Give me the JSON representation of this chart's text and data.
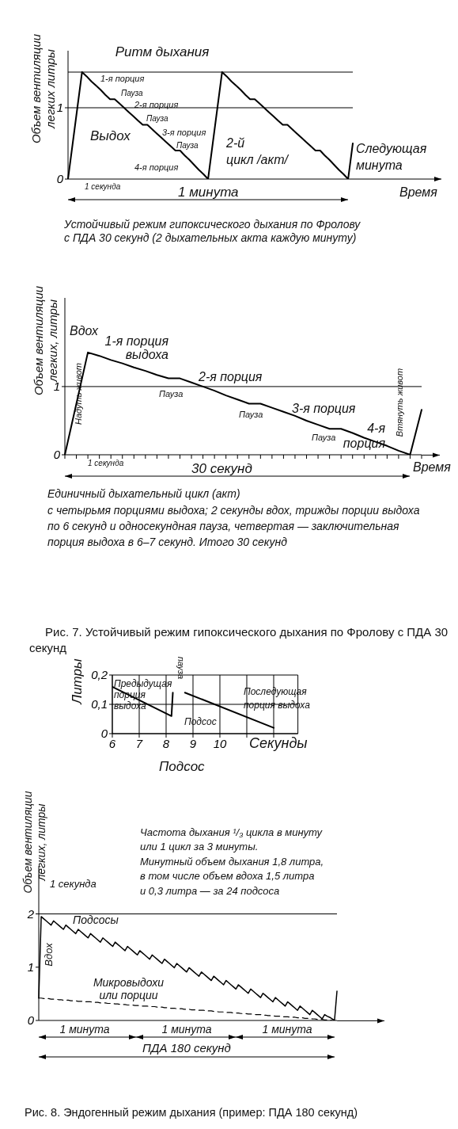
{
  "chart_data": [
    {
      "type": "line",
      "title": "Ритм дыхания",
      "xlabel": "Время",
      "ylabel": "Объем вентиляции легких литры",
      "categories": [
        null,
        null,
        null,
        null,
        null,
        null,
        null,
        null,
        null,
        null,
        null,
        null,
        null,
        null,
        null,
        null,
        null,
        null,
        null,
        null,
        null,
        null,
        null,
        null,
        null,
        null,
        null,
        null,
        null,
        null,
        null,
        null,
        null,
        null,
        null,
        null,
        null,
        null,
        null,
        null,
        null,
        null,
        null,
        null,
        null,
        null,
        null,
        null,
        null,
        null,
        null,
        null,
        null,
        null,
        null,
        null,
        null,
        null,
        null,
        null,
        null,
        null
      ],
      "series": [
        {
          "color": "#000000",
          "values": [
            0,
            0.5,
            1.0,
            1.5,
            1.44,
            1.37,
            1.31,
            1.25,
            1.18,
            1.12,
            1.12,
            1.06,
            1.0,
            0.94,
            0.88,
            0.82,
            0.76,
            0.76,
            0.7,
            0.64,
            0.58,
            0.52,
            0.46,
            0.4,
            0.4,
            0.33,
            0.27,
            0.2,
            0.13,
            0.07,
            0,
            0.5,
            1.0,
            1.5,
            1.44,
            1.37,
            1.31,
            1.25,
            1.18,
            1.12,
            1.12,
            1.06,
            1.0,
            0.94,
            0.88,
            0.82,
            0.76,
            0.76,
            0.7,
            0.64,
            0.58,
            0.52,
            0.46,
            0.4,
            0.4,
            0.33,
            0.27,
            0.2,
            0.13,
            0.07,
            0,
            0.5
          ]
        }
      ],
      "ylim": [
        0,
        1.8
      ],
      "yticks": [
        0,
        1
      ],
      "tick_labels": "y",
      "ref_lines": [
        {
          "axis": "y",
          "value": 1
        },
        {
          "axis": "y",
          "value": 1.5
        }
      ],
      "annotations": [
        "1-я порция",
        "Пауза",
        "2-я порция",
        "Пауза",
        "3-я порция",
        "Пауза",
        "4-я порция",
        "Выдох",
        "2-й\nцикл /акт/",
        "Следующая\nминута",
        "1 секунда",
        "1 минута",
        "Устойчивый режим гипоксического дыхания по Фролову\nс ПДА 30 секунд (2 дыхательных акта каждую минуту)"
      ]
    },
    {
      "type": "line",
      "xlabel": "Время",
      "ylabel": "Объем вентиляции легких, литры",
      "categories": [
        null,
        null,
        null,
        null,
        null,
        null,
        null,
        null,
        null,
        null,
        null,
        null,
        null,
        null,
        null,
        null,
        null,
        null,
        null,
        null,
        null,
        null,
        null,
        null,
        null,
        null,
        null,
        null,
        null,
        null,
        null,
        null
      ],
      "series": [
        {
          "color": "#000000",
          "values": [
            0,
            0.75,
            1.5,
            1.45,
            1.39,
            1.34,
            1.28,
            1.23,
            1.17,
            1.12,
            1.12,
            1.06,
            1.0,
            0.94,
            0.87,
            0.81,
            0.75,
            0.75,
            0.69,
            0.63,
            0.57,
            0.5,
            0.44,
            0.38,
            0.38,
            0.32,
            0.25,
            0.19,
            0.13,
            0.06,
            0,
            0.66
          ]
        }
      ],
      "ylim": [
        0,
        2.3
      ],
      "yticks": [
        0,
        1
      ],
      "tick_labels": "y",
      "ref_lines": [
        {
          "axis": "y",
          "value": 1
        }
      ],
      "annotations": [
        "Вдох",
        "1-я порция\nвыдоха",
        "2-я порция",
        "Пауза",
        "Пауза",
        "3-я порция",
        "Пауза",
        "4-я\nпорция",
        "Надуть живот",
        "Втянуть живот",
        "1 секунда",
        "30 секунд",
        "Единичный дыхательный цикл (акт)",
        "с четырьмя порциями выдоха; 2 секунды вдох, трижды порции выдоха по 6 секунд и односекундная пауза, четвертая — заключительная порция выдоха в 6–7 секунд. Итого 30 секунд",
        "Рис. 7. Устойчивый режим гипоксического дыхания по Фролову с ПДА 30 секунд"
      ]
    },
    {
      "type": "line",
      "xlabel": "Секунды",
      "ylabel": "Литры",
      "x": [
        6,
        8.2,
        8.25,
        8.48,
        8.7,
        12
      ],
      "series": [
        {
          "color": "#000000",
          "values": [
            0.16,
            0.06,
            0.14,
            null,
            0.14,
            0.02
          ]
        }
      ],
      "xlim": [
        6,
        12.9
      ],
      "ylim": [
        0,
        0.2
      ],
      "xticks": [
        6,
        7,
        8,
        9,
        10,
        {
          "value": 11,
          "label": null
        },
        {
          "value": 12,
          "label": null
        }
      ],
      "yticks": [
        0,
        {
          "value": 0.1,
          "label": "0,1"
        },
        {
          "value": 0.2,
          "label": "0,2"
        }
      ],
      "grid": true,
      "annotations": [
        "Предыдущая\nпорция\nвыдоха",
        "пауза",
        "Последующая\nпорция выдоха",
        "Подсос",
        "Подсос"
      ]
    },
    {
      "type": "line",
      "ylabel": "Объем вентиляции легких, литры",
      "categories": [
        null,
        null,
        null,
        null,
        null,
        null,
        null,
        null,
        null,
        null,
        null,
        null,
        null,
        null,
        null,
        null,
        null,
        null,
        null,
        null,
        null,
        null,
        null,
        null,
        null,
        null,
        null,
        null,
        null,
        null,
        null,
        null,
        null,
        null,
        null,
        null,
        null,
        null,
        null,
        null,
        null,
        null,
        null,
        null,
        null,
        null,
        null,
        null,
        null,
        null,
        null,
        null,
        null,
        null,
        null,
        null,
        null,
        null,
        null,
        null,
        null,
        null,
        null,
        null,
        null,
        null,
        null,
        null,
        null,
        null,
        null,
        null,
        null,
        null,
        null,
        null,
        null,
        null,
        null,
        null,
        null,
        null,
        null,
        null,
        null,
        null,
        null,
        null,
        null,
        null,
        null,
        null,
        null,
        null,
        null,
        null,
        null,
        null,
        null,
        null,
        null,
        null,
        null,
        null,
        null,
        null,
        null,
        null,
        null,
        null,
        null,
        null,
        null,
        null,
        null,
        null,
        null,
        null,
        null,
        null,
        null,
        null
      ],
      "series": [
        {
          "color": "#000000",
          "values": [
            0.42,
            1.95,
            1.91,
            1.87,
            1.83,
            1.79,
            1.87,
            1.83,
            1.79,
            1.75,
            1.71,
            1.79,
            1.75,
            1.71,
            1.67,
            1.63,
            1.71,
            1.67,
            1.63,
            1.59,
            1.55,
            1.63,
            1.59,
            1.55,
            1.51,
            1.47,
            1.55,
            1.51,
            1.47,
            1.43,
            1.39,
            1.47,
            1.43,
            1.39,
            1.35,
            1.31,
            1.39,
            1.35,
            1.31,
            1.27,
            1.23,
            1.31,
            1.27,
            1.23,
            1.19,
            1.15,
            1.23,
            1.19,
            1.15,
            1.11,
            1.07,
            1.15,
            1.11,
            1.07,
            1.03,
            0.99,
            1.07,
            1.03,
            0.99,
            0.95,
            0.91,
            0.99,
            0.95,
            0.91,
            0.87,
            0.83,
            0.91,
            0.87,
            0.83,
            0.79,
            0.75,
            0.83,
            0.79,
            0.75,
            0.71,
            0.67,
            0.75,
            0.71,
            0.67,
            0.63,
            0.59,
            0.67,
            0.63,
            0.59,
            0.55,
            0.51,
            0.59,
            0.55,
            0.51,
            0.47,
            0.43,
            0.51,
            0.47,
            0.43,
            0.39,
            0.35,
            0.43,
            0.39,
            0.35,
            0.31,
            0.27,
            0.35,
            0.31,
            0.27,
            0.23,
            0.19,
            0.27,
            0.23,
            0.19,
            0.15,
            0.11,
            0.19,
            0.15,
            0.11,
            0.07,
            0.03,
            0.11,
            0.08,
            0.06,
            0.03,
            0,
            0.55
          ]
        },
        {
          "color": "#000000",
          "line_style": "dashed",
          "values": [
            0.42,
            0.42,
            0.41,
            0.41,
            0.41,
            0.4,
            0.4,
            0.4,
            0.39,
            0.39,
            0.38,
            0.38,
            0.38,
            0.37,
            0.37,
            0.37,
            0.36,
            0.36,
            0.36,
            0.35,
            0.35,
            0.35,
            0.34,
            0.34,
            0.34,
            0.33,
            0.33,
            0.33,
            0.32,
            0.32,
            0.32,
            0.31,
            0.31,
            0.3,
            0.3,
            0.3,
            0.29,
            0.29,
            0.29,
            0.28,
            0.28,
            0.28,
            0.27,
            0.27,
            0.27,
            0.26,
            0.26,
            0.26,
            0.25,
            0.25,
            0.25,
            0.24,
            0.24,
            0.23,
            0.23,
            0.23,
            0.22,
            0.22,
            0.22,
            0.21,
            0.21,
            0.21,
            0.2,
            0.2,
            0.2,
            0.19,
            0.19,
            0.19,
            0.18,
            0.18,
            0.18,
            0.17,
            0.17,
            0.16,
            0.16,
            0.16,
            0.15,
            0.15,
            0.15,
            0.14,
            0.14,
            0.14,
            0.13,
            0.13,
            0.13,
            0.12,
            0.12,
            0.12,
            0.11,
            0.11,
            0.11,
            0.1,
            0.1,
            0.09,
            0.09,
            0.09,
            0.08,
            0.08,
            0.08,
            0.07,
            0.07,
            0.07,
            0.06,
            0.06,
            0.06,
            0.05,
            0.05,
            0.05,
            0.04,
            0.04,
            0.04,
            0.03,
            0.03,
            0.02,
            0.02,
            0.02,
            0.01,
            0.01,
            0.01,
            0.0,
            0,
            null
          ]
        }
      ],
      "ylim": [
        0,
        2.9
      ],
      "yticks": [
        0,
        1,
        2
      ],
      "tick_labels": "y",
      "ref_lines": [
        {
          "axis": "y",
          "value": 2
        }
      ],
      "annotations": [
        "Частота дыхания ¹/₃ цикла в минуту\nили 1 цикл за 3 минуты.\nМинутный объем дыхания 1,8 литра,\nв том числе объем вдоха 1,5 литра\nи 0,3 литра — за 24 подсоса",
        "1 секунда",
        "Вдох",
        "Подсосы",
        "Микровыдохи\nили порции",
        "1 минута",
        "1 минута",
        "1 минута",
        "ПДА 180 секунд",
        "Рис. 8. Эндогенный режим дыхания (пример: ПДА 180 секунд)"
      ]
    }
  ]
}
